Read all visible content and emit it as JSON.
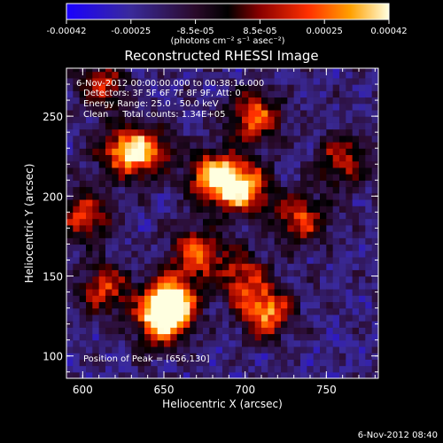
{
  "chart_data": {
    "type": "heatmap",
    "title": "Reconstructed RHESSI Image",
    "xlabel": "Heliocentric X (arcsec)",
    "ylabel": "Heliocentric Y (arcsec)",
    "xlim": [
      590,
      782
    ],
    "ylim": [
      86,
      280
    ],
    "x_ticks": [
      600,
      650,
      700,
      750
    ],
    "y_ticks": [
      100,
      150,
      200,
      250
    ],
    "colorbar": {
      "ticks": [
        "-0.00042",
        "-0.00025",
        "-8.5e-05",
        "8.5e-05",
        "0.00025",
        "0.00042"
      ],
      "unit_label": "(photons cm⁻² s⁻¹ asec⁻²)",
      "range": [
        -0.00042,
        0.00042
      ]
    },
    "annotations": {
      "time_range": "6-Nov-2012 00:00:00.000 to 00:38:16.000",
      "detectors": "Detectors: 3F 5F 6F 7F 8F 9F, Att: 0",
      "energy_range": "Energy Range: 25.0 - 50.0 keV",
      "algorithm": "Clean     Total counts: 1.34E+05",
      "peak": "Position of Peak = [656,130]"
    },
    "blobs": [
      {
        "x": 682,
        "y": 212,
        "value": 0.0004
      },
      {
        "x": 700,
        "y": 205,
        "value": 0.00034
      },
      {
        "x": 655,
        "y": 135,
        "value": 0.00042
      },
      {
        "x": 648,
        "y": 122,
        "value": 0.00033
      },
      {
        "x": 712,
        "y": 128,
        "value": 0.00031
      },
      {
        "x": 706,
        "y": 250,
        "value": 0.00026
      },
      {
        "x": 625,
        "y": 228,
        "value": 0.00022
      },
      {
        "x": 640,
        "y": 228,
        "value": 0.0002
      },
      {
        "x": 602,
        "y": 188,
        "value": 0.00018
      },
      {
        "x": 670,
        "y": 165,
        "value": 0.00022
      },
      {
        "x": 734,
        "y": 186,
        "value": 0.00018
      },
      {
        "x": 760,
        "y": 222,
        "value": 0.00016
      },
      {
        "x": 614,
        "y": 142,
        "value": 0.00016
      },
      {
        "x": 698,
        "y": 150,
        "value": 0.00014
      },
      {
        "x": 612,
        "y": 270,
        "value": 0.00014
      }
    ]
  },
  "footer": {
    "timestamp": "6-Nov-2012 08:40"
  }
}
